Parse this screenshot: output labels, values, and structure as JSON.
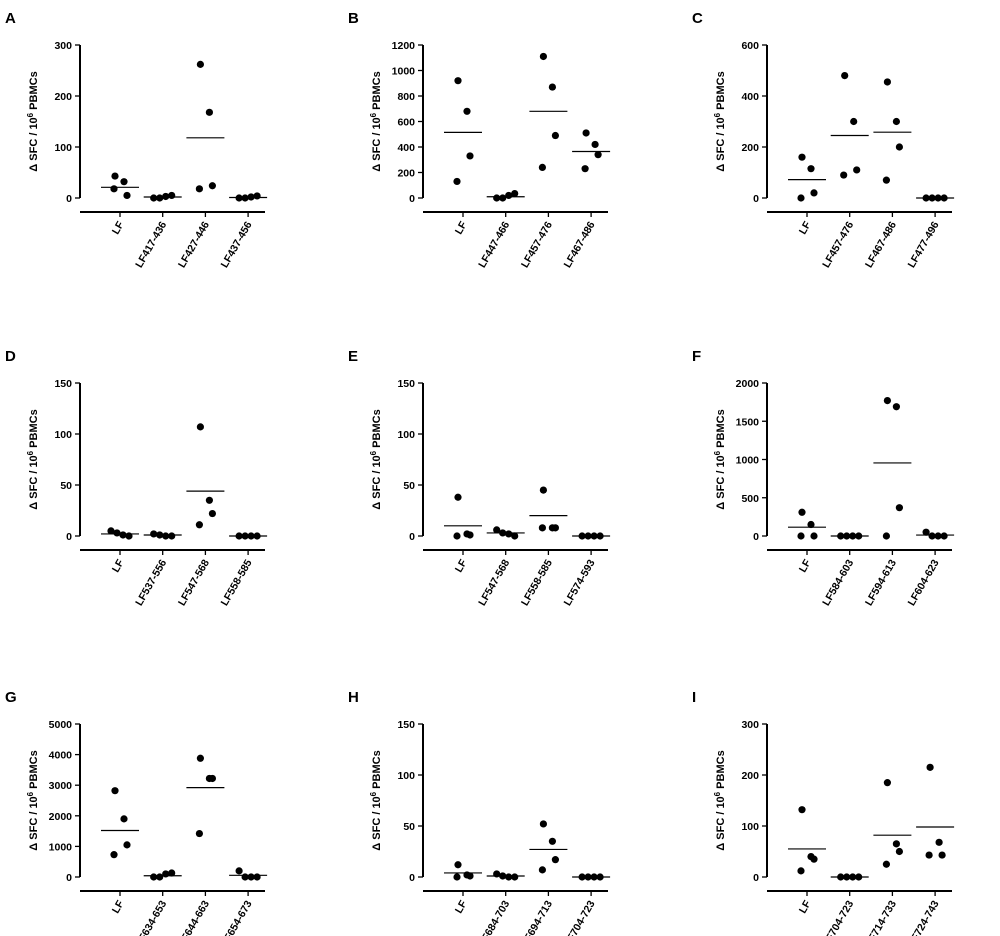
{
  "ylabel_prefix": "Δ SFC / 10",
  "ylabel_exp": "6",
  "ylabel_suffix": " PBMCs",
  "chart_data": [
    {
      "type": "scatter",
      "panel": "A",
      "ylim": [
        0,
        300
      ],
      "yticks": [
        0,
        100,
        200,
        300
      ],
      "categories": [
        "LF",
        "LF417-436",
        "LF427-446",
        "LF437-456"
      ],
      "points": [
        [
          43,
          32,
          5,
          18
        ],
        [
          0,
          0,
          3,
          5
        ],
        [
          262,
          168,
          24,
          18
        ],
        [
          0,
          0,
          2,
          4
        ]
      ],
      "means": [
        21,
        2,
        118,
        1
      ]
    },
    {
      "type": "scatter",
      "panel": "B",
      "ylim": [
        0,
        1200
      ],
      "yticks": [
        0,
        200,
        400,
        600,
        800,
        1000,
        1200
      ],
      "categories": [
        "LF",
        "LF447-466",
        "LF457-476",
        "LF467-486"
      ],
      "points": [
        [
          920,
          680,
          330,
          130
        ],
        [
          0,
          0,
          20,
          35
        ],
        [
          1110,
          870,
          490,
          240
        ],
        [
          510,
          420,
          340,
          230
        ]
      ],
      "means": [
        515,
        10,
        680,
        365
      ]
    },
    {
      "type": "scatter",
      "panel": "C",
      "ylim": [
        0,
        600
      ],
      "yticks": [
        0,
        200,
        400,
        600
      ],
      "categories": [
        "LF",
        "LF457-476",
        "LF467-486",
        "LF477-496"
      ],
      "points": [
        [
          160,
          115,
          20,
          0
        ],
        [
          480,
          300,
          110,
          90
        ],
        [
          455,
          300,
          200,
          70
        ],
        [
          0,
          0,
          0,
          0
        ]
      ],
      "means": [
        72,
        245,
        258,
        0
      ]
    },
    {
      "type": "scatter",
      "panel": "D",
      "ylim": [
        0,
        150
      ],
      "yticks": [
        0,
        50,
        100,
        150
      ],
      "categories": [
        "LF",
        "LF537-556",
        "LF547-568",
        "LF558-585"
      ],
      "points": [
        [
          5,
          3,
          1,
          0
        ],
        [
          2,
          1,
          0,
          0
        ],
        [
          107,
          35,
          22,
          11
        ],
        [
          0,
          0,
          0,
          0
        ]
      ],
      "means": [
        2,
        1,
        44,
        0
      ]
    },
    {
      "type": "scatter",
      "panel": "E",
      "ylim": [
        0,
        150
      ],
      "yticks": [
        0,
        50,
        100,
        150
      ],
      "categories": [
        "LF",
        "LF547-568",
        "LF558-585",
        "LF574-593"
      ],
      "points": [
        [
          38,
          2,
          1,
          0
        ],
        [
          6,
          3,
          2,
          0
        ],
        [
          45,
          8,
          8,
          8
        ],
        [
          0,
          0,
          0,
          0
        ]
      ],
      "means": [
        10,
        3,
        20,
        0
      ]
    },
    {
      "type": "scatter",
      "panel": "F",
      "ylim": [
        0,
        2000
      ],
      "yticks": [
        0,
        500,
        1000,
        1500,
        2000
      ],
      "categories": [
        "LF",
        "LF584-603",
        "LF594-613",
        "LF604-623"
      ],
      "points": [
        [
          310,
          150,
          0,
          0
        ],
        [
          0,
          0,
          0,
          0
        ],
        [
          1770,
          1690,
          370,
          0
        ],
        [
          50,
          0,
          0,
          0
        ]
      ],
      "means": [
        115,
        0,
        955,
        12
      ]
    },
    {
      "type": "scatter",
      "panel": "G",
      "ylim": [
        0,
        5000
      ],
      "yticks": [
        0,
        1000,
        2000,
        3000,
        4000,
        5000
      ],
      "categories": [
        "LF",
        "LF634-653",
        "LF644-663",
        "LF654-673"
      ],
      "points": [
        [
          2820,
          1900,
          1050,
          730
        ],
        [
          0,
          0,
          100,
          130
        ],
        [
          3880,
          3220,
          3220,
          1420
        ],
        [
          200,
          0,
          0,
          0
        ]
      ],
      "means": [
        1520,
        40,
        2920,
        55
      ]
    },
    {
      "type": "scatter",
      "panel": "H",
      "ylim": [
        0,
        150
      ],
      "yticks": [
        0,
        50,
        100,
        150
      ],
      "categories": [
        "LF",
        "LF684-703",
        "LF694-713",
        "LF704-723"
      ],
      "points": [
        [
          12,
          2,
          1,
          0
        ],
        [
          3,
          1,
          0,
          0
        ],
        [
          52,
          35,
          17,
          7
        ],
        [
          0,
          0,
          0,
          0
        ]
      ],
      "means": [
        4,
        1,
        27,
        0
      ]
    },
    {
      "type": "scatter",
      "panel": "I",
      "ylim": [
        0,
        300
      ],
      "yticks": [
        0,
        100,
        200,
        300
      ],
      "categories": [
        "LF",
        "LF704-723",
        "LF714-733",
        "LF724-743"
      ],
      "points": [
        [
          132,
          40,
          35,
          12
        ],
        [
          0,
          0,
          0,
          0
        ],
        [
          185,
          65,
          50,
          25
        ],
        [
          215,
          68,
          43,
          43
        ]
      ],
      "means": [
        55,
        0,
        82,
        98
      ]
    }
  ]
}
